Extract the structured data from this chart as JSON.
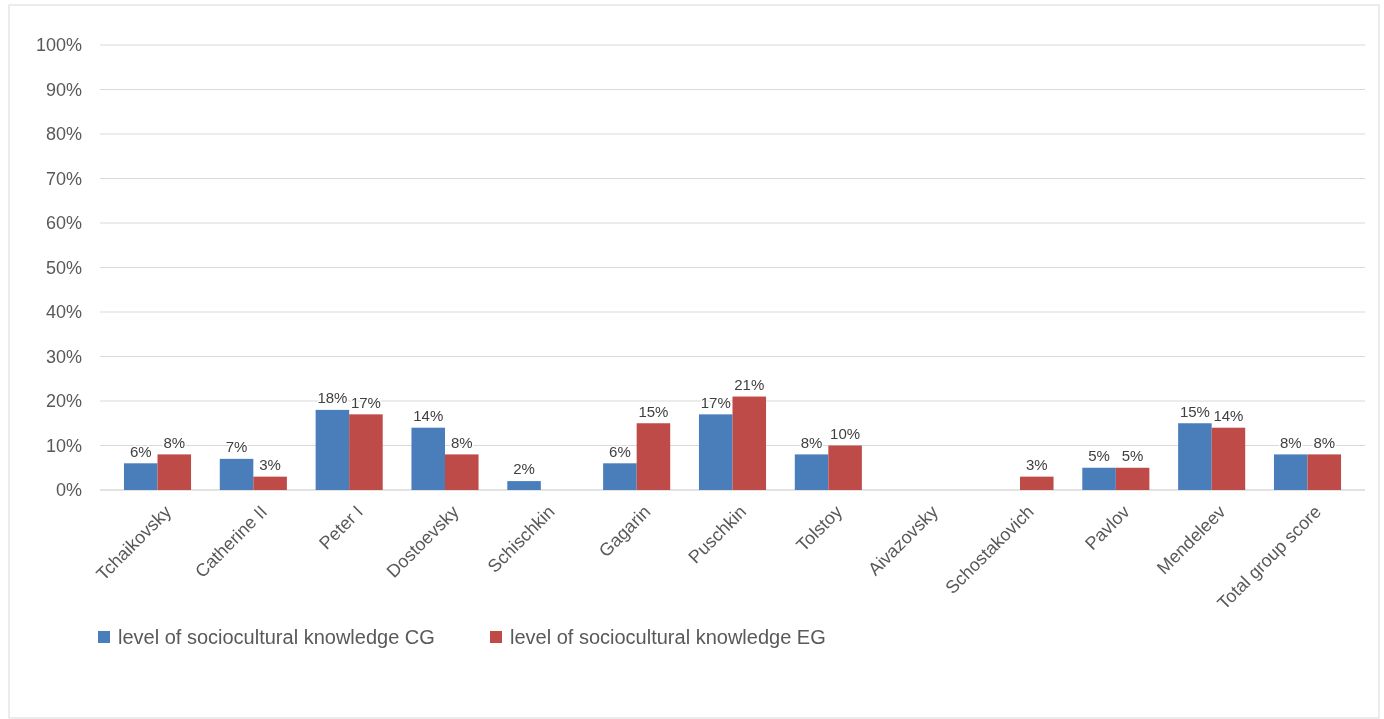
{
  "chart_data": {
    "type": "bar",
    "categories": [
      "Tchaikovsky",
      "Catherine II",
      "Peter I",
      "Dostoevsky",
      "Schischkin",
      "Gagarin",
      "Puschkin",
      "Tolstoy",
      "Aivazovsky",
      "Schostakovich",
      "Pavlov",
      "Mendeleev",
      "Total group score"
    ],
    "series": [
      {
        "name": "level of sociocultural knowledge CG",
        "color": "#4a7ebb",
        "values": [
          6,
          7,
          18,
          14,
          2,
          6,
          17,
          8,
          0,
          0,
          5,
          15,
          8
        ],
        "value_labels": [
          "6%",
          "7%",
          "18%",
          "14%",
          "2%",
          "6%",
          "17%",
          "8%",
          null,
          null,
          "5%",
          "15%",
          "8%"
        ]
      },
      {
        "name": "level of sociocultural knowledge EG",
        "color": "#be4b48",
        "values": [
          8,
          3,
          17,
          8,
          0,
          15,
          21,
          10,
          0,
          3,
          5,
          14,
          8
        ],
        "value_labels": [
          "8%",
          "3%",
          "17%",
          "8%",
          null,
          "15%",
          "21%",
          "10%",
          null,
          "3%",
          "5%",
          "14%",
          "8%"
        ]
      }
    ],
    "ylim": [
      0,
      100
    ],
    "yticks": [
      {
        "value": 0,
        "label": "0%"
      },
      {
        "value": 10,
        "label": "10%"
      },
      {
        "value": 20,
        "label": "20%"
      },
      {
        "value": 30,
        "label": "30%"
      },
      {
        "value": 40,
        "label": "40%"
      },
      {
        "value": 50,
        "label": "50%"
      },
      {
        "value": 60,
        "label": "60%"
      },
      {
        "value": 70,
        "label": "70%"
      },
      {
        "value": 80,
        "label": "80%"
      },
      {
        "value": 90,
        "label": "90%"
      },
      {
        "value": 100,
        "label": "100%"
      }
    ],
    "grid": "y",
    "legend": "bottom"
  }
}
